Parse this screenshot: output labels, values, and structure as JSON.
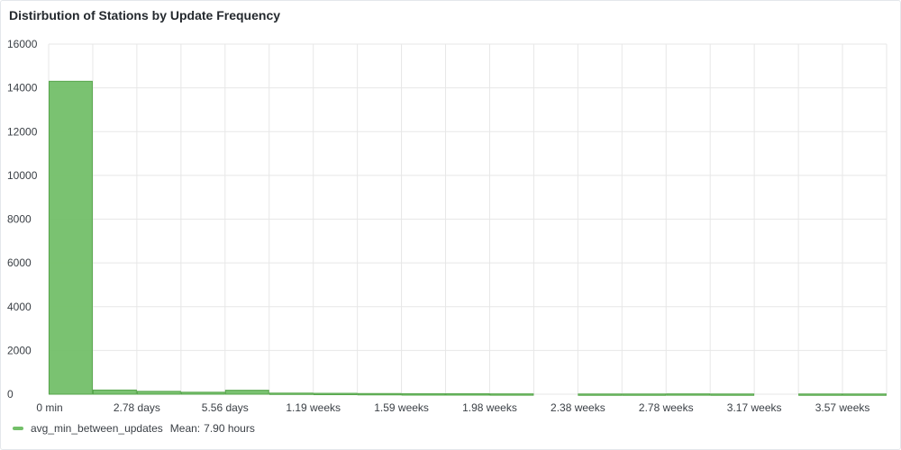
{
  "panel": {
    "title": "Distirbution of Stations by Update Frequency"
  },
  "legend": {
    "series_name": "avg_min_between_updates",
    "stat_label": "Mean:",
    "stat_value": "7.90 hours"
  },
  "colors": {
    "bar_fill": "#73bf69",
    "bar_stroke": "#56a64b",
    "grid": "#e7e7e7"
  },
  "chart_data": {
    "type": "bar",
    "ylim": [
      0,
      16000
    ],
    "y_ticks": [
      0,
      2000,
      4000,
      6000,
      8000,
      10000,
      12000,
      14000,
      16000
    ],
    "x_ticks": [
      "0 min",
      "2.78 days",
      "5.56 days",
      "1.19 weeks",
      "1.59 weeks",
      "1.98 weeks",
      "2.38 weeks",
      "2.78 weeks",
      "3.17 weeks",
      "3.57 weeks"
    ],
    "bins": 19,
    "values": [
      14300,
      190,
      130,
      90,
      180,
      50,
      40,
      30,
      20,
      20,
      15,
      0,
      10,
      10,
      15,
      10,
      0,
      10,
      10
    ],
    "grid": true,
    "legend": "bottom-left"
  }
}
